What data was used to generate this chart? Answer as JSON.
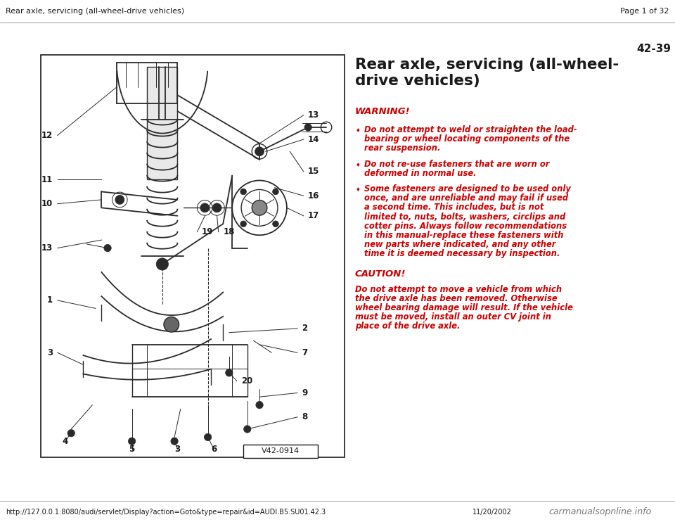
{
  "page_title_left": "Rear axle, servicing (all-wheel-drive vehicles)",
  "page_title_right": "Page 1 of 32",
  "page_number": "42-39",
  "section_title_line1": "Rear axle, servicing (all-wheel-",
  "section_title_line2": "drive vehicles)",
  "warning_header": "WARNING!",
  "caution_header": "CAUTION!",
  "caution_text_lines": [
    "Do not attempt to move a vehicle from which",
    "the drive axle has been removed. Otherwise",
    "wheel bearing damage will result. If the vehicle",
    "must be moved, install an outer CV joint in",
    "place of the drive axle."
  ],
  "bullet1_lines": [
    "Do not attempt to weld or straighten the load-",
    "bearing or wheel locating components of the",
    "rear suspension."
  ],
  "bullet2_lines": [
    "Do not re-use fasteners that are worn or",
    "deformed in normal use."
  ],
  "bullet3_lines": [
    "Some fasteners are designed to be used only",
    "once, and are unreliable and may fail if used",
    "a second time. This includes, but is not",
    "limited to, nuts, bolts, washers, circlips and",
    "cotter pins. Always follow recommendations",
    "in this manual-replace these fasteners with",
    "new parts where indicated, and any other",
    "time it is deemed necessary by inspection."
  ],
  "footer_url": "http://127.0.0.1:8080/audi/servlet/Display?action=Goto&type=repair&id=AUDI.B5.SU01.42.3",
  "footer_date": "11/20/2002",
  "footer_watermark": "carmanualsopnline.info",
  "diagram_label": "V42-0914",
  "bg_color": "#ffffff",
  "text_color_black": "#1a1a1a",
  "text_color_red": "#cc0000",
  "line_color": "#2a2a2a"
}
